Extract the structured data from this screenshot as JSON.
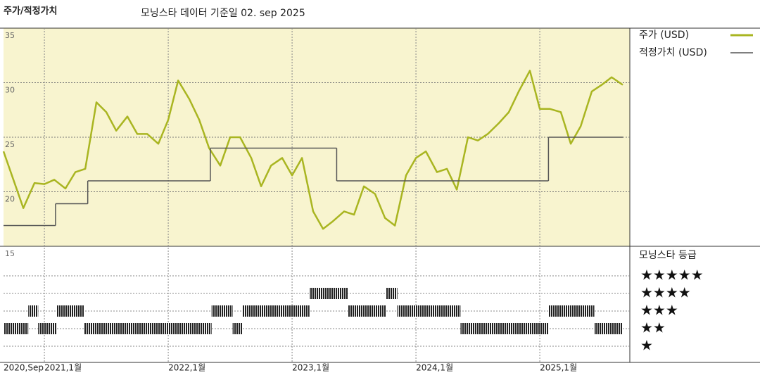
{
  "chart_data": {
    "type": "line",
    "title": "주가/적정가치",
    "subtitle": "모닝스타 데이터 기준일 02. sep 2025",
    "xlim": [
      2020.67,
      2025.67
    ],
    "xticks": [
      {
        "value": 2020.67,
        "label": "2020,Sep"
      },
      {
        "value": 2021,
        "label": "2021,1월"
      },
      {
        "value": 2022,
        "label": "2022,1월"
      },
      {
        "value": 2023,
        "label": "2023,1월"
      },
      {
        "value": 2024,
        "label": "2024,1월"
      },
      {
        "value": 2025,
        "label": "2025,1월"
      }
    ],
    "ylim": [
      15,
      35
    ],
    "yticks": [
      15,
      20,
      25,
      30,
      35
    ],
    "grid": true,
    "background": "#f8f4cf",
    "series": [
      {
        "name": "주가 (USD)",
        "color": "#a9b521",
        "x": [
          2020.67,
          2020.75,
          2020.83,
          2020.92,
          2021.0,
          2021.08,
          2021.17,
          2021.25,
          2021.33,
          2021.42,
          2021.5,
          2021.58,
          2021.67,
          2021.75,
          2021.83,
          2021.92,
          2022.0,
          2022.08,
          2022.17,
          2022.25,
          2022.33,
          2022.42,
          2022.5,
          2022.58,
          2022.67,
          2022.75,
          2022.83,
          2022.92,
          2023.0,
          2023.08,
          2023.17,
          2023.25,
          2023.33,
          2023.42,
          2023.5,
          2023.58,
          2023.67,
          2023.75,
          2023.83,
          2023.92,
          2024.0,
          2024.08,
          2024.17,
          2024.25,
          2024.33,
          2024.42,
          2024.5,
          2024.58,
          2024.67,
          2024.75,
          2024.83,
          2024.92,
          2025.0,
          2025.08,
          2025.17,
          2025.25,
          2025.33,
          2025.42,
          2025.5,
          2025.58,
          2025.67
        ],
        "values": [
          23.7,
          21.1,
          18.5,
          20.8,
          20.7,
          21.1,
          20.3,
          21.8,
          22.1,
          28.2,
          27.3,
          25.6,
          26.9,
          25.3,
          25.3,
          24.4,
          26.6,
          30.2,
          28.5,
          26.6,
          24.0,
          22.4,
          25.0,
          25.0,
          23.1,
          20.5,
          22.4,
          23.1,
          21.5,
          23.1,
          18.2,
          16.6,
          17.3,
          18.2,
          17.9,
          20.5,
          19.8,
          17.6,
          16.9,
          21.5,
          23.1,
          23.7,
          21.8,
          22.1,
          20.2,
          25.0,
          24.7,
          25.3,
          26.3,
          27.3,
          29.2,
          31.1,
          27.6,
          27.6,
          27.3,
          24.4,
          26.0,
          29.2,
          29.8,
          30.5,
          29.8
        ]
      },
      {
        "name": "적정가치 (USD)",
        "color": "#555555",
        "step": true,
        "x": [
          2020.67,
          2021.09,
          2021.35,
          2022.34,
          2023.36,
          2025.07,
          2025.67
        ],
        "values": [
          16.9,
          18.9,
          21.0,
          24.0,
          21.0,
          25.0,
          25.0
        ]
      }
    ],
    "rating_title": "모닝스타 등급",
    "star_labels": [
      "★★★★★",
      "★★★★",
      "★★★",
      "★★",
      "★"
    ],
    "star_levels": [
      5,
      4,
      3,
      2,
      1
    ],
    "ratings": {
      "starts": [
        2020.67,
        2020.87,
        2020.95,
        2021.1,
        2021.32,
        2022.35,
        2022.52,
        2022.6,
        2023.14,
        2023.45,
        2023.76,
        2023.85,
        2024.36,
        2025.07,
        2025.44
      ],
      "ends": [
        2020.87,
        2020.95,
        2021.1,
        2021.32,
        2022.35,
        2022.52,
        2022.6,
        2023.14,
        2023.45,
        2023.76,
        2023.85,
        2024.36,
        2025.07,
        2025.44,
        2025.67
      ],
      "stars": [
        2,
        3,
        2,
        3,
        2,
        3,
        2,
        3,
        4,
        3,
        4,
        3,
        2,
        3,
        2
      ]
    }
  }
}
